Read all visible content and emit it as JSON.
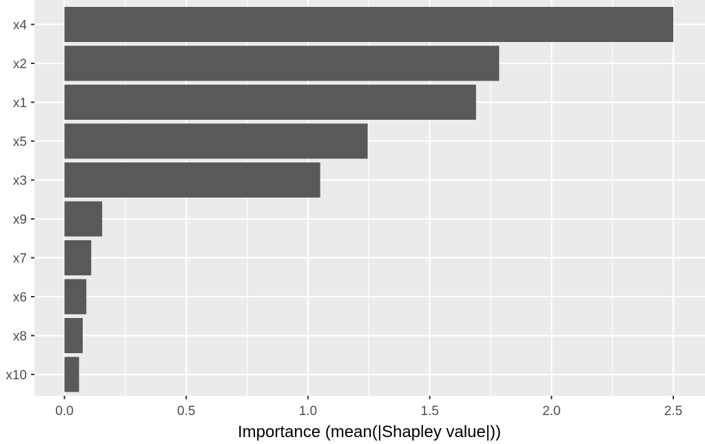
{
  "chart_data": {
    "type": "bar",
    "orientation": "horizontal",
    "categories": [
      "x4",
      "x2",
      "x1",
      "x5",
      "x3",
      "x9",
      "x7",
      "x6",
      "x8",
      "x10"
    ],
    "values": [
      2.5,
      1.785,
      1.69,
      1.245,
      1.05,
      0.155,
      0.11,
      0.09,
      0.075,
      0.06
    ],
    "x_ticks": [
      "0.0",
      "0.5",
      "1.0",
      "1.5",
      "2.0",
      "2.5"
    ],
    "x_tick_values": [
      0,
      0.5,
      1.0,
      1.5,
      2.0,
      2.5
    ],
    "xlabel": "Importance (mean(|Shapley value|))",
    "ylabel": "",
    "xlim": [
      -0.125,
      2.625
    ],
    "grid": true,
    "colors": {
      "bar": "#595959",
      "panel": "#ebebeb",
      "gridline": "#ffffff",
      "tick": "#333333"
    }
  }
}
